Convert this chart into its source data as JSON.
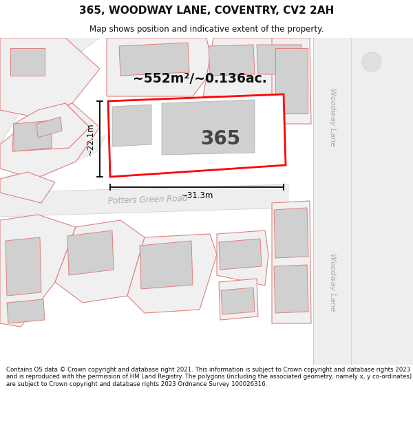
{
  "title": "365, WOODWAY LANE, COVENTRY, CV2 2AH",
  "subtitle": "Map shows position and indicative extent of the property.",
  "footer": "Contains OS data © Crown copyright and database right 2021. This information is subject to Crown copyright and database rights 2023 and is reproduced with the permission of HM Land Registry. The polygons (including the associated geometry, namely x, y co-ordinates) are subject to Crown copyright and database rights 2023 Ordnance Survey 100026316.",
  "area_label": "~552m²/~0.136ac.",
  "plot_number": "365",
  "dim_width": "~31.3m",
  "dim_height": "~22.1m",
  "road_label_1": "Potters Green Road",
  "road_label_2_top": "Woodway Lane",
  "road_label_2_bot": "Woodway Lane",
  "map_bg": "#ffffff",
  "plot_outline_color": "#ff0000",
  "building_fill": "#d0d0d0",
  "parcel_fill": "#f0f0f0",
  "pink_line_color": "#e08080",
  "road_fill": "#eeeeee",
  "road_label_color": "#aaaaaa",
  "woodway_fill": "#eeeeee",
  "woodway_border": "#cccccc",
  "dim_color": "#222222",
  "area_label_color": "#111111",
  "plot_num_color": "#444444"
}
